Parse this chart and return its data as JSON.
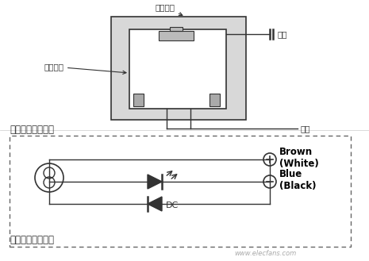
{
  "bg_color": "#ffffff",
  "line_color": "#333333",
  "title1": "交流电磁阀接线图",
  "title2": "直流电磁阀接线图",
  "label_coil": "线圈外壳",
  "label_base": "接线底座",
  "label_ground": "接地",
  "label_power": "电源",
  "label_brown": "Brown\n(White)",
  "label_blue": "Blue\n(Black)",
  "label_dc": "DC",
  "watermark": "www.elecfans.com"
}
